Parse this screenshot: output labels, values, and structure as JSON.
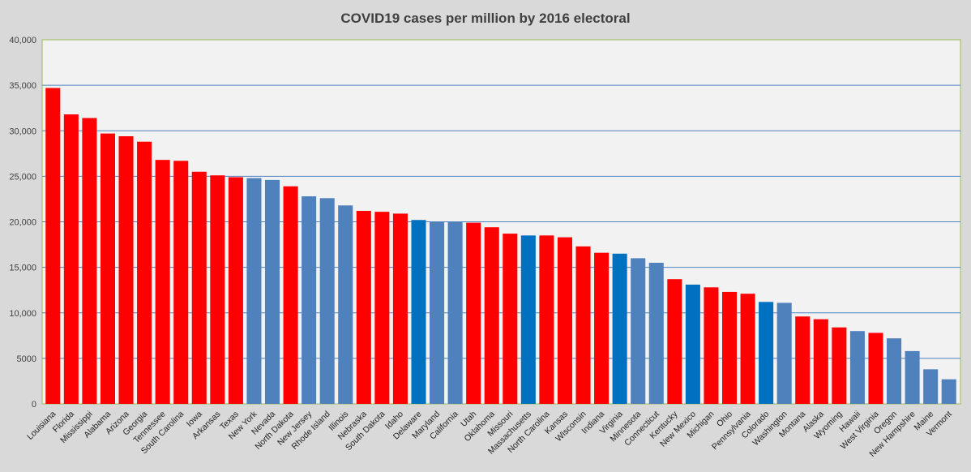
{
  "chart_data": {
    "type": "bar",
    "title": "COVID19 cases per million by 2016 electoral",
    "xlabel": "",
    "ylabel": "",
    "ylim": [
      0,
      40000
    ],
    "yticks": [
      0,
      5000,
      10000,
      15000,
      20000,
      25000,
      30000,
      35000,
      40000
    ],
    "ytick_labels": [
      "0",
      "5000",
      "10,000",
      "15,000",
      "20,000",
      "25,000",
      "30,000",
      "35,000",
      "40,000"
    ],
    "grid": true,
    "legend": "none",
    "colors": {
      "red": "#ff0000",
      "blue": "#4f81bd",
      "swing_blue": "#0070c0",
      "plot_background": "#f2f2f2",
      "page_background": "#d9d9d9",
      "gridline": "#4f81bd",
      "plot_border": "#9bbb59"
    },
    "categories": [
      "Louisiana",
      "Florida",
      "Mississippi",
      "Alabama",
      "Arizona",
      "Georgia",
      "Tennessee",
      "South Carolina",
      "Iowa",
      "Arkansas",
      "Texas",
      "New York",
      "Nevada",
      "North Dakota",
      "New Jersey",
      "Rhode Island",
      "Illinois",
      "Nebraska",
      "South Dakota",
      "Idaho",
      "Delaware",
      "Maryland",
      "California",
      "Utah",
      "Oklahoma",
      "Missouri",
      "Massachusetts",
      "North Carolina",
      "Kansas",
      "Wisconsin",
      "Indiana",
      "Virginia",
      "Minnesota",
      "Connecticut",
      "Kentucky",
      "New Mexico",
      "Michigan",
      "Ohio",
      "Pennsylvania",
      "Colorado",
      "Washington",
      "Montana",
      "Alaska",
      "Wyoming",
      "Hawaii",
      "West Virginia",
      "Oregon",
      "New Hampshire",
      "Maine",
      "Vermont"
    ],
    "values": [
      34700,
      31800,
      31400,
      29700,
      29400,
      28800,
      26800,
      26700,
      25500,
      25100,
      24900,
      24800,
      24600,
      23900,
      22800,
      22600,
      21800,
      21200,
      21100,
      20900,
      20200,
      20000,
      20000,
      19900,
      19400,
      18700,
      18500,
      18500,
      18300,
      17300,
      16600,
      16500,
      16000,
      15500,
      13700,
      13100,
      12800,
      12300,
      12100,
      11200,
      11100,
      9600,
      9300,
      8400,
      8000,
      7800,
      7200,
      5800,
      3800,
      2700
    ],
    "bar_colors": [
      "red",
      "red",
      "red",
      "red",
      "red",
      "red",
      "red",
      "red",
      "red",
      "red",
      "red",
      "blue",
      "blue",
      "red",
      "blue",
      "blue",
      "blue",
      "red",
      "red",
      "red",
      "swing_blue",
      "blue",
      "blue",
      "red",
      "red",
      "red",
      "swing_blue",
      "red",
      "red",
      "red",
      "red",
      "swing_blue",
      "blue",
      "blue",
      "red",
      "swing_blue",
      "red",
      "red",
      "red",
      "swing_blue",
      "blue",
      "red",
      "red",
      "red",
      "blue",
      "red",
      "blue",
      "blue",
      "blue",
      "blue"
    ]
  }
}
